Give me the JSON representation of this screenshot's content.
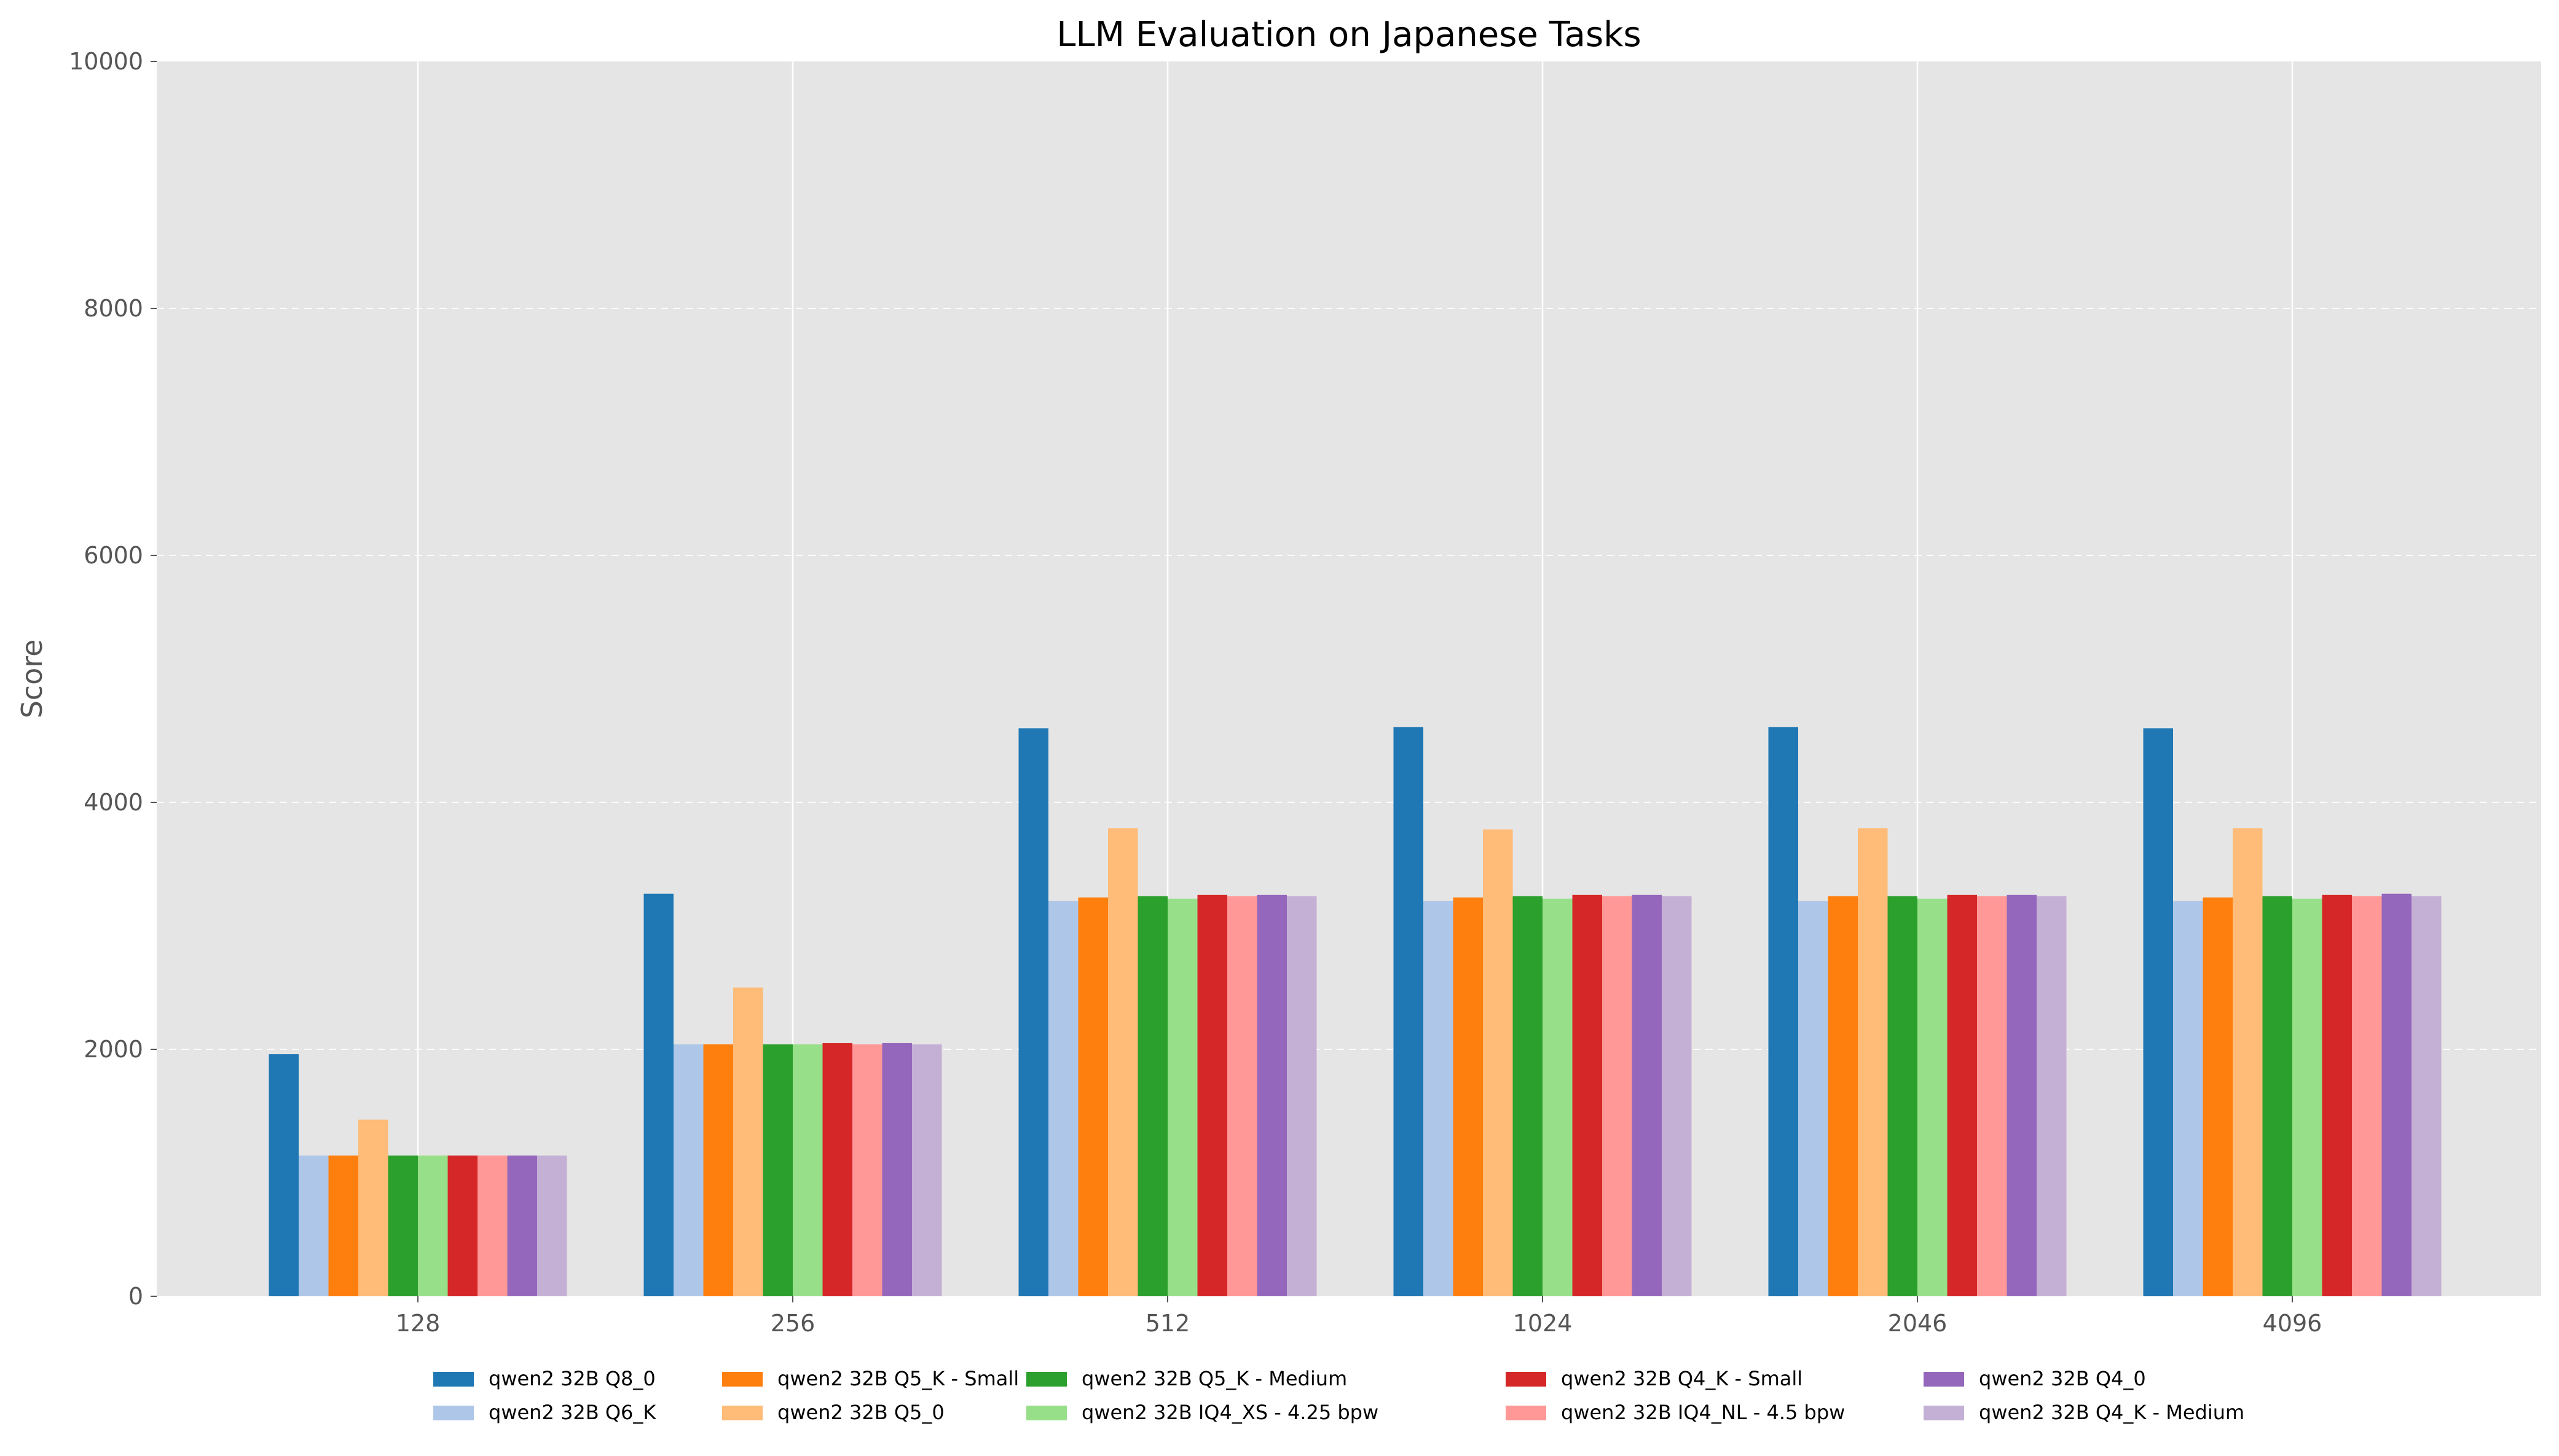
{
  "chart_data": {
    "type": "bar",
    "title": "LLM Evaluation on Japanese Tasks",
    "xlabel": "",
    "ylabel": "Score",
    "ylim": [
      0,
      10000
    ],
    "yticks": [
      0,
      2000,
      4000,
      6000,
      8000,
      10000
    ],
    "grid": true,
    "legend_placement": "bottom-center",
    "categories": [
      "128",
      "256",
      "512",
      "1024",
      "2046",
      "4096"
    ],
    "series": [
      {
        "name": "qwen2 32B Q8_0",
        "color": "#1f77b4",
        "values": [
          1960,
          3260,
          4600,
          4610,
          4610,
          4600
        ]
      },
      {
        "name": "qwen2 32B Q6_K",
        "color": "#aec7e8",
        "values": [
          1140,
          2040,
          3200,
          3200,
          3200,
          3200
        ]
      },
      {
        "name": "qwen2 32B Q5_K - Small",
        "color": "#ff7f0e",
        "values": [
          1140,
          2040,
          3230,
          3230,
          3240,
          3230
        ]
      },
      {
        "name": "qwen2 32B Q5_0",
        "color": "#ffbb78",
        "values": [
          1430,
          2500,
          3790,
          3780,
          3790,
          3790
        ]
      },
      {
        "name": "qwen2 32B Q5_K - Medium",
        "color": "#2ca02c",
        "values": [
          1140,
          2040,
          3240,
          3240,
          3240,
          3240
        ]
      },
      {
        "name": "qwen2 32B IQ4_XS - 4.25 bpw",
        "color": "#98df8a",
        "values": [
          1140,
          2040,
          3220,
          3220,
          3220,
          3220
        ]
      },
      {
        "name": "qwen2 32B Q4_K - Small",
        "color": "#d62728",
        "values": [
          1140,
          2050,
          3250,
          3250,
          3250,
          3250
        ]
      },
      {
        "name": "qwen2 32B IQ4_NL - 4.5 bpw",
        "color": "#ff9896",
        "values": [
          1140,
          2040,
          3240,
          3240,
          3240,
          3240
        ]
      },
      {
        "name": "qwen2 32B Q4_0",
        "color": "#9467bd",
        "values": [
          1140,
          2050,
          3250,
          3250,
          3250,
          3260
        ]
      },
      {
        "name": "qwen2 32B Q4_K - Medium",
        "color": "#c5b0d5",
        "values": [
          1140,
          2040,
          3240,
          3240,
          3240,
          3240
        ]
      }
    ]
  }
}
